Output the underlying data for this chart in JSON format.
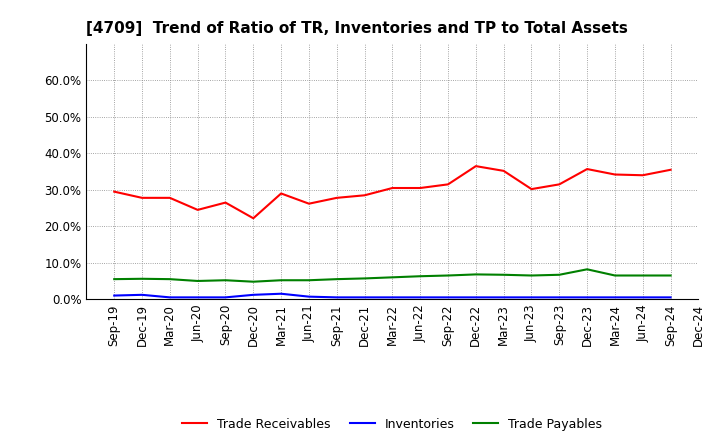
{
  "title": "[4709]  Trend of Ratio of TR, Inventories and TP to Total Assets",
  "x_labels": [
    "Sep-19",
    "Dec-19",
    "Mar-20",
    "Jun-20",
    "Sep-20",
    "Dec-20",
    "Mar-21",
    "Jun-21",
    "Sep-21",
    "Dec-21",
    "Mar-22",
    "Jun-22",
    "Sep-22",
    "Dec-22",
    "Mar-23",
    "Jun-23",
    "Sep-23",
    "Dec-23",
    "Mar-24",
    "Jun-24",
    "Sep-24",
    "Dec-24"
  ],
  "trade_receivables": [
    0.295,
    0.278,
    0.278,
    0.245,
    0.265,
    0.222,
    0.29,
    0.262,
    0.278,
    0.285,
    0.305,
    0.305,
    0.315,
    0.365,
    0.352,
    0.302,
    0.315,
    0.357,
    0.342,
    0.34,
    0.355,
    null
  ],
  "inventories": [
    0.01,
    0.012,
    0.005,
    0.005,
    0.005,
    0.012,
    0.015,
    0.007,
    0.005,
    0.005,
    0.005,
    0.005,
    0.005,
    0.005,
    0.005,
    0.005,
    0.005,
    0.005,
    0.005,
    0.005,
    0.005,
    null
  ],
  "trade_payables": [
    0.055,
    0.056,
    0.055,
    0.05,
    0.052,
    0.048,
    0.052,
    0.052,
    0.055,
    0.057,
    0.06,
    0.063,
    0.065,
    0.068,
    0.067,
    0.065,
    0.067,
    0.082,
    0.065,
    0.065,
    0.065,
    null
  ],
  "tr_color": "#FF0000",
  "inv_color": "#0000FF",
  "tp_color": "#008000",
  "ylim": [
    0.0,
    0.7
  ],
  "yticks": [
    0.0,
    0.1,
    0.2,
    0.3,
    0.4,
    0.5,
    0.6
  ],
  "legend_labels": [
    "Trade Receivables",
    "Inventories",
    "Trade Payables"
  ],
  "bg_color": "#FFFFFF",
  "plot_bg_color": "#FFFFFF",
  "title_fontsize": 11,
  "tick_fontsize": 8.5,
  "legend_fontsize": 9
}
